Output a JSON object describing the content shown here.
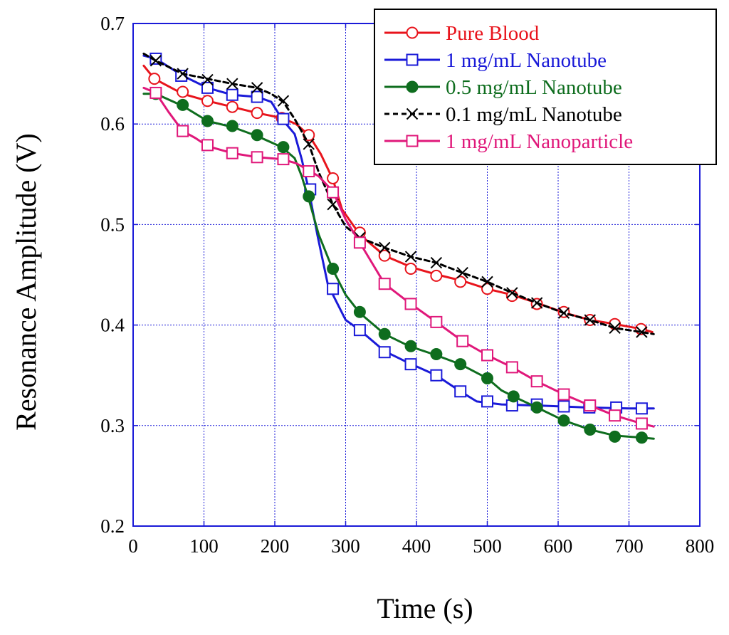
{
  "chart_data": {
    "type": "line",
    "title": "",
    "xlabel": "Time (s)",
    "ylabel": "Resonance Amplitude (V)",
    "xlim": [
      0,
      800
    ],
    "ylim": [
      0.2,
      0.7
    ],
    "xticks": [
      0,
      100,
      200,
      300,
      400,
      500,
      600,
      700,
      800
    ],
    "yticks": [
      0.2,
      0.3,
      0.4,
      0.5,
      0.6,
      0.7
    ],
    "xtick_labels": [
      "0",
      "100",
      "200",
      "300",
      "400",
      "500",
      "600",
      "700",
      "800"
    ],
    "ytick_labels": [
      "0.2",
      "0.3",
      "0.4",
      "0.5",
      "0.6",
      "0.7"
    ],
    "grid": true,
    "legend_position": "top-right",
    "series": [
      {
        "name": "Pure Blood",
        "color": "#e8141c",
        "marker": "open-circle",
        "line_style": "solid",
        "line": [
          [
            15,
            0.658
          ],
          [
            30,
            0.645
          ],
          [
            70,
            0.63
          ],
          [
            105,
            0.623
          ],
          [
            140,
            0.617
          ],
          [
            175,
            0.611
          ],
          [
            210,
            0.606
          ],
          [
            230,
            0.6
          ],
          [
            248,
            0.589
          ],
          [
            265,
            0.57
          ],
          [
            282,
            0.545
          ],
          [
            295,
            0.515
          ],
          [
            320,
            0.49
          ],
          [
            355,
            0.469
          ],
          [
            395,
            0.457
          ],
          [
            430,
            0.45
          ],
          [
            465,
            0.444
          ],
          [
            500,
            0.436
          ],
          [
            535,
            0.43
          ],
          [
            570,
            0.422
          ],
          [
            610,
            0.412
          ],
          [
            645,
            0.405
          ],
          [
            680,
            0.401
          ],
          [
            718,
            0.396
          ],
          [
            733,
            0.393
          ]
        ],
        "markers": [
          [
            30,
            0.645
          ],
          [
            70,
            0.632
          ],
          [
            105,
            0.623
          ],
          [
            140,
            0.617
          ],
          [
            175,
            0.611
          ],
          [
            210,
            0.606
          ],
          [
            248,
            0.589
          ],
          [
            282,
            0.546
          ],
          [
            320,
            0.492
          ],
          [
            355,
            0.469
          ],
          [
            392,
            0.456
          ],
          [
            428,
            0.449
          ],
          [
            462,
            0.443
          ],
          [
            500,
            0.436
          ],
          [
            535,
            0.429
          ],
          [
            570,
            0.421
          ],
          [
            608,
            0.413
          ],
          [
            645,
            0.405
          ],
          [
            680,
            0.401
          ],
          [
            717,
            0.396
          ]
        ]
      },
      {
        "name": "1 mg/mL Nanotube",
        "color": "#1a1ad8",
        "marker": "open-square",
        "line_style": "solid",
        "line": [
          [
            15,
            0.668
          ],
          [
            32,
            0.665
          ],
          [
            70,
            0.648
          ],
          [
            105,
            0.636
          ],
          [
            140,
            0.629
          ],
          [
            175,
            0.627
          ],
          [
            195,
            0.622
          ],
          [
            210,
            0.605
          ],
          [
            228,
            0.59
          ],
          [
            238,
            0.565
          ],
          [
            248,
            0.534
          ],
          [
            260,
            0.49
          ],
          [
            275,
            0.44
          ],
          [
            300,
            0.405
          ],
          [
            320,
            0.395
          ],
          [
            355,
            0.374
          ],
          [
            390,
            0.362
          ],
          [
            428,
            0.35
          ],
          [
            462,
            0.334
          ],
          [
            485,
            0.324
          ],
          [
            520,
            0.321
          ],
          [
            570,
            0.32
          ],
          [
            640,
            0.318
          ],
          [
            700,
            0.317
          ],
          [
            735,
            0.317
          ]
        ],
        "markers": [
          [
            32,
            0.665
          ],
          [
            68,
            0.648
          ],
          [
            105,
            0.636
          ],
          [
            140,
            0.629
          ],
          [
            175,
            0.627
          ],
          [
            212,
            0.605
          ],
          [
            250,
            0.535
          ],
          [
            282,
            0.436
          ],
          [
            320,
            0.395
          ],
          [
            355,
            0.373
          ],
          [
            392,
            0.361
          ],
          [
            428,
            0.35
          ],
          [
            462,
            0.334
          ],
          [
            500,
            0.324
          ],
          [
            535,
            0.32
          ],
          [
            570,
            0.321
          ],
          [
            608,
            0.319
          ],
          [
            644,
            0.318
          ],
          [
            682,
            0.318
          ],
          [
            718,
            0.317
          ]
        ]
      },
      {
        "name": "0.5 mg/mL Nanotube",
        "color": "#0e6d1e",
        "marker": "filled-circle",
        "line_style": "solid",
        "line": [
          [
            15,
            0.63
          ],
          [
            32,
            0.63
          ],
          [
            70,
            0.618
          ],
          [
            105,
            0.603
          ],
          [
            140,
            0.597
          ],
          [
            175,
            0.588
          ],
          [
            210,
            0.577
          ],
          [
            228,
            0.566
          ],
          [
            238,
            0.548
          ],
          [
            248,
            0.525
          ],
          [
            262,
            0.49
          ],
          [
            282,
            0.455
          ],
          [
            300,
            0.43
          ],
          [
            320,
            0.412
          ],
          [
            355,
            0.391
          ],
          [
            390,
            0.379
          ],
          [
            428,
            0.37
          ],
          [
            462,
            0.361
          ],
          [
            500,
            0.347
          ],
          [
            520,
            0.335
          ],
          [
            540,
            0.328
          ],
          [
            570,
            0.318
          ],
          [
            608,
            0.305
          ],
          [
            645,
            0.296
          ],
          [
            680,
            0.29
          ],
          [
            718,
            0.288
          ],
          [
            735,
            0.287
          ]
        ],
        "markers": [
          [
            32,
            0.63
          ],
          [
            70,
            0.619
          ],
          [
            105,
            0.603
          ],
          [
            140,
            0.598
          ],
          [
            175,
            0.589
          ],
          [
            212,
            0.577
          ],
          [
            248,
            0.528
          ],
          [
            282,
            0.456
          ],
          [
            320,
            0.413
          ],
          [
            355,
            0.391
          ],
          [
            392,
            0.379
          ],
          [
            428,
            0.371
          ],
          [
            462,
            0.361
          ],
          [
            500,
            0.347
          ],
          [
            537,
            0.329
          ],
          [
            570,
            0.318
          ],
          [
            608,
            0.305
          ],
          [
            645,
            0.296
          ],
          [
            680,
            0.289
          ],
          [
            718,
            0.288
          ]
        ]
      },
      {
        "name": "0.1 mg/mL Nanotube",
        "color": "#000000",
        "marker": "cross",
        "line_style": "dashed",
        "line": [
          [
            15,
            0.67
          ],
          [
            32,
            0.663
          ],
          [
            70,
            0.65
          ],
          [
            105,
            0.645
          ],
          [
            140,
            0.64
          ],
          [
            175,
            0.636
          ],
          [
            195,
            0.63
          ],
          [
            212,
            0.622
          ],
          [
            228,
            0.605
          ],
          [
            248,
            0.58
          ],
          [
            262,
            0.552
          ],
          [
            282,
            0.52
          ],
          [
            300,
            0.498
          ],
          [
            320,
            0.487
          ],
          [
            355,
            0.477
          ],
          [
            392,
            0.468
          ],
          [
            428,
            0.462
          ],
          [
            465,
            0.452
          ],
          [
            500,
            0.443
          ],
          [
            535,
            0.432
          ],
          [
            570,
            0.422
          ],
          [
            608,
            0.412
          ],
          [
            645,
            0.405
          ],
          [
            680,
            0.397
          ],
          [
            718,
            0.393
          ],
          [
            735,
            0.391
          ]
        ],
        "markers": [
          [
            32,
            0.663
          ],
          [
            70,
            0.65
          ],
          [
            105,
            0.644
          ],
          [
            140,
            0.64
          ],
          [
            175,
            0.636
          ],
          [
            212,
            0.623
          ],
          [
            248,
            0.58
          ],
          [
            282,
            0.52
          ],
          [
            320,
            0.487
          ],
          [
            355,
            0.477
          ],
          [
            392,
            0.468
          ],
          [
            428,
            0.462
          ],
          [
            465,
            0.452
          ],
          [
            500,
            0.443
          ],
          [
            535,
            0.432
          ],
          [
            570,
            0.422
          ],
          [
            608,
            0.412
          ],
          [
            645,
            0.405
          ],
          [
            680,
            0.397
          ],
          [
            718,
            0.393
          ]
        ]
      },
      {
        "name": "1 mg/mL Nanoparticle",
        "color": "#e0187a",
        "marker": "open-square",
        "line_style": "solid",
        "line": [
          [
            15,
            0.636
          ],
          [
            32,
            0.631
          ],
          [
            50,
            0.612
          ],
          [
            70,
            0.593
          ],
          [
            88,
            0.586
          ],
          [
            105,
            0.578
          ],
          [
            125,
            0.574
          ],
          [
            140,
            0.571
          ],
          [
            175,
            0.567
          ],
          [
            210,
            0.565
          ],
          [
            230,
            0.561
          ],
          [
            248,
            0.554
          ],
          [
            262,
            0.548
          ],
          [
            282,
            0.533
          ],
          [
            300,
            0.505
          ],
          [
            320,
            0.482
          ],
          [
            355,
            0.441
          ],
          [
            392,
            0.421
          ],
          [
            428,
            0.403
          ],
          [
            465,
            0.384
          ],
          [
            500,
            0.37
          ],
          [
            535,
            0.358
          ],
          [
            570,
            0.344
          ],
          [
            608,
            0.331
          ],
          [
            645,
            0.32
          ],
          [
            680,
            0.31
          ],
          [
            718,
            0.302
          ],
          [
            735,
            0.299
          ]
        ],
        "markers": [
          [
            32,
            0.631
          ],
          [
            70,
            0.593
          ],
          [
            105,
            0.579
          ],
          [
            140,
            0.571
          ],
          [
            175,
            0.567
          ],
          [
            212,
            0.565
          ],
          [
            248,
            0.553
          ],
          [
            282,
            0.532
          ],
          [
            320,
            0.482
          ],
          [
            355,
            0.441
          ],
          [
            392,
            0.421
          ],
          [
            428,
            0.403
          ],
          [
            465,
            0.384
          ],
          [
            500,
            0.37
          ],
          [
            535,
            0.358
          ],
          [
            570,
            0.344
          ],
          [
            608,
            0.331
          ],
          [
            645,
            0.32
          ],
          [
            680,
            0.31
          ],
          [
            718,
            0.302
          ]
        ]
      }
    ]
  }
}
